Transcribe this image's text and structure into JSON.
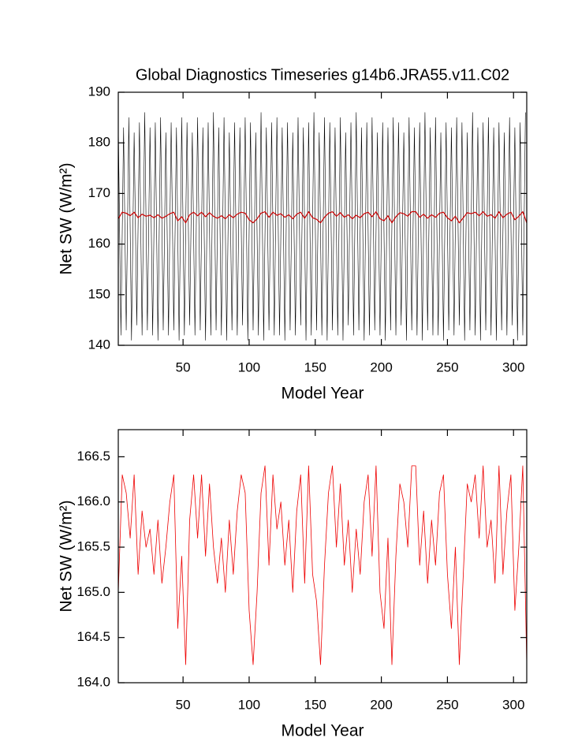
{
  "chart_data": [
    {
      "type": "line",
      "title": "Global Diagnostics Timeseries g14b6.JRA55.v11.C02",
      "xlabel": "Model Year",
      "ylabel": "Net SW (W/m²)",
      "xlim": [
        1,
        310
      ],
      "ylim": [
        140,
        190
      ],
      "xticks": [
        50,
        100,
        150,
        200,
        250,
        300
      ],
      "yticks": [
        140,
        150,
        160,
        170,
        180,
        190
      ],
      "series": [
        {
          "color": "#000000",
          "x": [
            1,
            3,
            5,
            7,
            9,
            11,
            13,
            15,
            17,
            19,
            21,
            23,
            25,
            27,
            29,
            31,
            33,
            35,
            37,
            39,
            41,
            43,
            45,
            47,
            49,
            51,
            53,
            55,
            57,
            59,
            61,
            63,
            65,
            67,
            69,
            71,
            73,
            75,
            77,
            79,
            81,
            83,
            85,
            87,
            89,
            91,
            93,
            95,
            97,
            99,
            101,
            103,
            105,
            107,
            109,
            111,
            113,
            115,
            117,
            119,
            121,
            123,
            125,
            127,
            129,
            131,
            133,
            135,
            137,
            139,
            141,
            143,
            145,
            147,
            149,
            151,
            153,
            155,
            157,
            159,
            161,
            163,
            165,
            167,
            169,
            171,
            173,
            175,
            177,
            179,
            181,
            183,
            185,
            187,
            189,
            191,
            193,
            195,
            197,
            199,
            201,
            203,
            205,
            207,
            209,
            211,
            213,
            215,
            217,
            219,
            221,
            223,
            225,
            227,
            229,
            231,
            233,
            235,
            237,
            239,
            241,
            243,
            245,
            247,
            249,
            251,
            253,
            255,
            257,
            259,
            261,
            263,
            265,
            267,
            269,
            271,
            273,
            275,
            277,
            279,
            281,
            283,
            285,
            287,
            289,
            291,
            293,
            295,
            297,
            299,
            301,
            303,
            305,
            307,
            309
          ],
          "values": [
            184,
            142,
            183,
            143,
            185,
            141,
            182,
            144,
            184,
            142,
            186,
            143,
            183,
            142,
            184,
            141,
            185,
            143,
            182,
            142,
            184,
            143,
            183,
            141,
            185,
            142,
            184,
            144,
            182,
            142,
            185,
            143,
            183,
            141,
            184,
            142,
            186,
            143,
            183,
            142,
            185,
            141,
            182,
            143,
            184,
            142,
            183,
            144,
            185,
            141,
            184,
            143,
            182,
            142,
            186,
            141,
            183,
            143,
            184,
            142,
            185,
            142,
            183,
            141,
            184,
            143,
            182,
            142,
            185,
            144,
            183,
            141,
            184,
            142,
            186,
            143,
            182,
            142,
            185,
            141,
            184,
            143,
            183,
            142,
            185,
            141,
            182,
            144,
            184,
            142,
            186,
            143,
            183,
            141,
            184,
            142,
            185,
            143,
            182,
            142,
            184,
            141,
            183,
            143,
            185,
            142,
            184,
            144,
            182,
            141,
            185,
            143,
            183,
            142,
            184,
            141,
            186,
            143,
            183,
            142,
            185,
            142,
            182,
            141,
            184,
            143,
            183,
            142,
            185,
            144,
            184,
            141,
            182,
            143,
            186,
            142,
            183,
            141,
            184,
            143,
            185,
            142,
            183,
            141,
            184,
            143,
            182,
            142,
            185,
            144,
            183,
            141,
            184,
            142,
            186
          ],
          "stroke_width": 0.6
        },
        {
          "color": "#cc0000",
          "x": [
            1,
            4,
            7,
            10,
            13,
            16,
            19,
            22,
            25,
            28,
            31,
            34,
            37,
            40,
            43,
            46,
            49,
            52,
            55,
            58,
            61,
            64,
            67,
            70,
            73,
            76,
            79,
            82,
            85,
            88,
            91,
            94,
            97,
            100,
            103,
            106,
            109,
            112,
            115,
            118,
            121,
            124,
            127,
            130,
            133,
            136,
            139,
            142,
            145,
            148,
            151,
            154,
            157,
            160,
            163,
            166,
            169,
            172,
            175,
            178,
            181,
            184,
            187,
            190,
            193,
            196,
            199,
            202,
            205,
            208,
            211,
            214,
            217,
            220,
            223,
            226,
            229,
            232,
            235,
            238,
            241,
            244,
            247,
            250,
            253,
            256,
            259,
            262,
            265,
            268,
            271,
            274,
            277,
            280,
            283,
            286,
            289,
            292,
            295,
            298,
            301,
            304,
            307,
            310
          ],
          "values": [
            165.0,
            166.3,
            166.1,
            165.6,
            166.3,
            165.2,
            165.9,
            165.5,
            165.7,
            165.2,
            165.8,
            165.1,
            165.5,
            166.0,
            166.3,
            164.6,
            165.4,
            164.2,
            165.8,
            166.3,
            165.6,
            166.3,
            165.4,
            166.2,
            165.5,
            165.1,
            165.6,
            165.0,
            165.8,
            165.2,
            165.9,
            166.3,
            166.1,
            164.8,
            164.2,
            165.0,
            166.1,
            166.4,
            165.3,
            166.3,
            165.7,
            166.0,
            165.3,
            165.8,
            165.0,
            165.9,
            166.3,
            165.1,
            166.4,
            165.2,
            164.9,
            164.2,
            165.3,
            166.1,
            166.4,
            165.5,
            166.2,
            165.3,
            165.8,
            165.0,
            165.7,
            165.2,
            166.0,
            166.3,
            165.4,
            166.4,
            165.0,
            164.6,
            165.6,
            164.2,
            165.4,
            166.2,
            166.0,
            165.5,
            166.4,
            166.4,
            165.3,
            165.9,
            165.1,
            165.8,
            165.3,
            166.1,
            166.3,
            165.2,
            164.6,
            165.5,
            164.2,
            165.2,
            166.2,
            166.0,
            166.3,
            165.6,
            166.4,
            165.5,
            165.8,
            165.1,
            166.4,
            165.2,
            165.9,
            166.3,
            164.8,
            165.5,
            166.4,
            164.2
          ],
          "stroke_width": 1.2
        }
      ]
    },
    {
      "type": "line",
      "xlabel": "Model Year",
      "ylabel": "Net SW (W/m²)",
      "xlim": [
        1,
        310
      ],
      "ylim": [
        164,
        166.8
      ],
      "xticks": [
        50,
        100,
        150,
        200,
        250,
        300
      ],
      "yticks": [
        {
          "value": 164,
          "label": "164.0"
        },
        164.5,
        {
          "value": 165,
          "label": "165.0"
        },
        165.5,
        {
          "value": 166,
          "label": "166.0"
        },
        166.5
      ],
      "series": [
        {
          "color": "#ee0000",
          "x": [
            1,
            4,
            7,
            10,
            13,
            16,
            19,
            22,
            25,
            28,
            31,
            34,
            37,
            40,
            43,
            46,
            49,
            52,
            55,
            58,
            61,
            64,
            67,
            70,
            73,
            76,
            79,
            82,
            85,
            88,
            91,
            94,
            97,
            100,
            103,
            106,
            109,
            112,
            115,
            118,
            121,
            124,
            127,
            130,
            133,
            136,
            139,
            142,
            145,
            148,
            151,
            154,
            157,
            160,
            163,
            166,
            169,
            172,
            175,
            178,
            181,
            184,
            187,
            190,
            193,
            196,
            199,
            202,
            205,
            208,
            211,
            214,
            217,
            220,
            223,
            226,
            229,
            232,
            235,
            238,
            241,
            244,
            247,
            250,
            253,
            256,
            259,
            262,
            265,
            268,
            271,
            274,
            277,
            280,
            283,
            286,
            289,
            292,
            295,
            298,
            301,
            304,
            307,
            310
          ],
          "values": [
            165.0,
            166.3,
            166.1,
            165.6,
            166.3,
            165.2,
            165.9,
            165.5,
            165.7,
            165.2,
            165.8,
            165.1,
            165.5,
            166.0,
            166.3,
            164.6,
            165.4,
            164.2,
            165.8,
            166.3,
            165.6,
            166.3,
            165.4,
            166.2,
            165.5,
            165.1,
            165.6,
            165.0,
            165.8,
            165.2,
            165.9,
            166.3,
            166.1,
            164.8,
            164.2,
            165.0,
            166.1,
            166.4,
            165.3,
            166.3,
            165.7,
            166.0,
            165.3,
            165.8,
            165.0,
            165.9,
            166.3,
            165.1,
            166.4,
            165.2,
            164.9,
            164.2,
            165.3,
            166.1,
            166.4,
            165.5,
            166.2,
            165.3,
            165.8,
            165.0,
            165.7,
            165.2,
            166.0,
            166.3,
            165.4,
            166.4,
            165.0,
            164.6,
            165.6,
            164.2,
            165.4,
            166.2,
            166.0,
            165.5,
            166.4,
            166.4,
            165.3,
            165.9,
            165.1,
            165.8,
            165.3,
            166.1,
            166.3,
            165.2,
            164.6,
            165.5,
            164.2,
            165.2,
            166.2,
            166.0,
            166.3,
            165.6,
            166.4,
            165.5,
            165.8,
            165.1,
            166.4,
            165.2,
            165.9,
            166.3,
            164.8,
            165.5,
            166.4,
            164.2
          ],
          "stroke_width": 0.8
        }
      ]
    }
  ]
}
